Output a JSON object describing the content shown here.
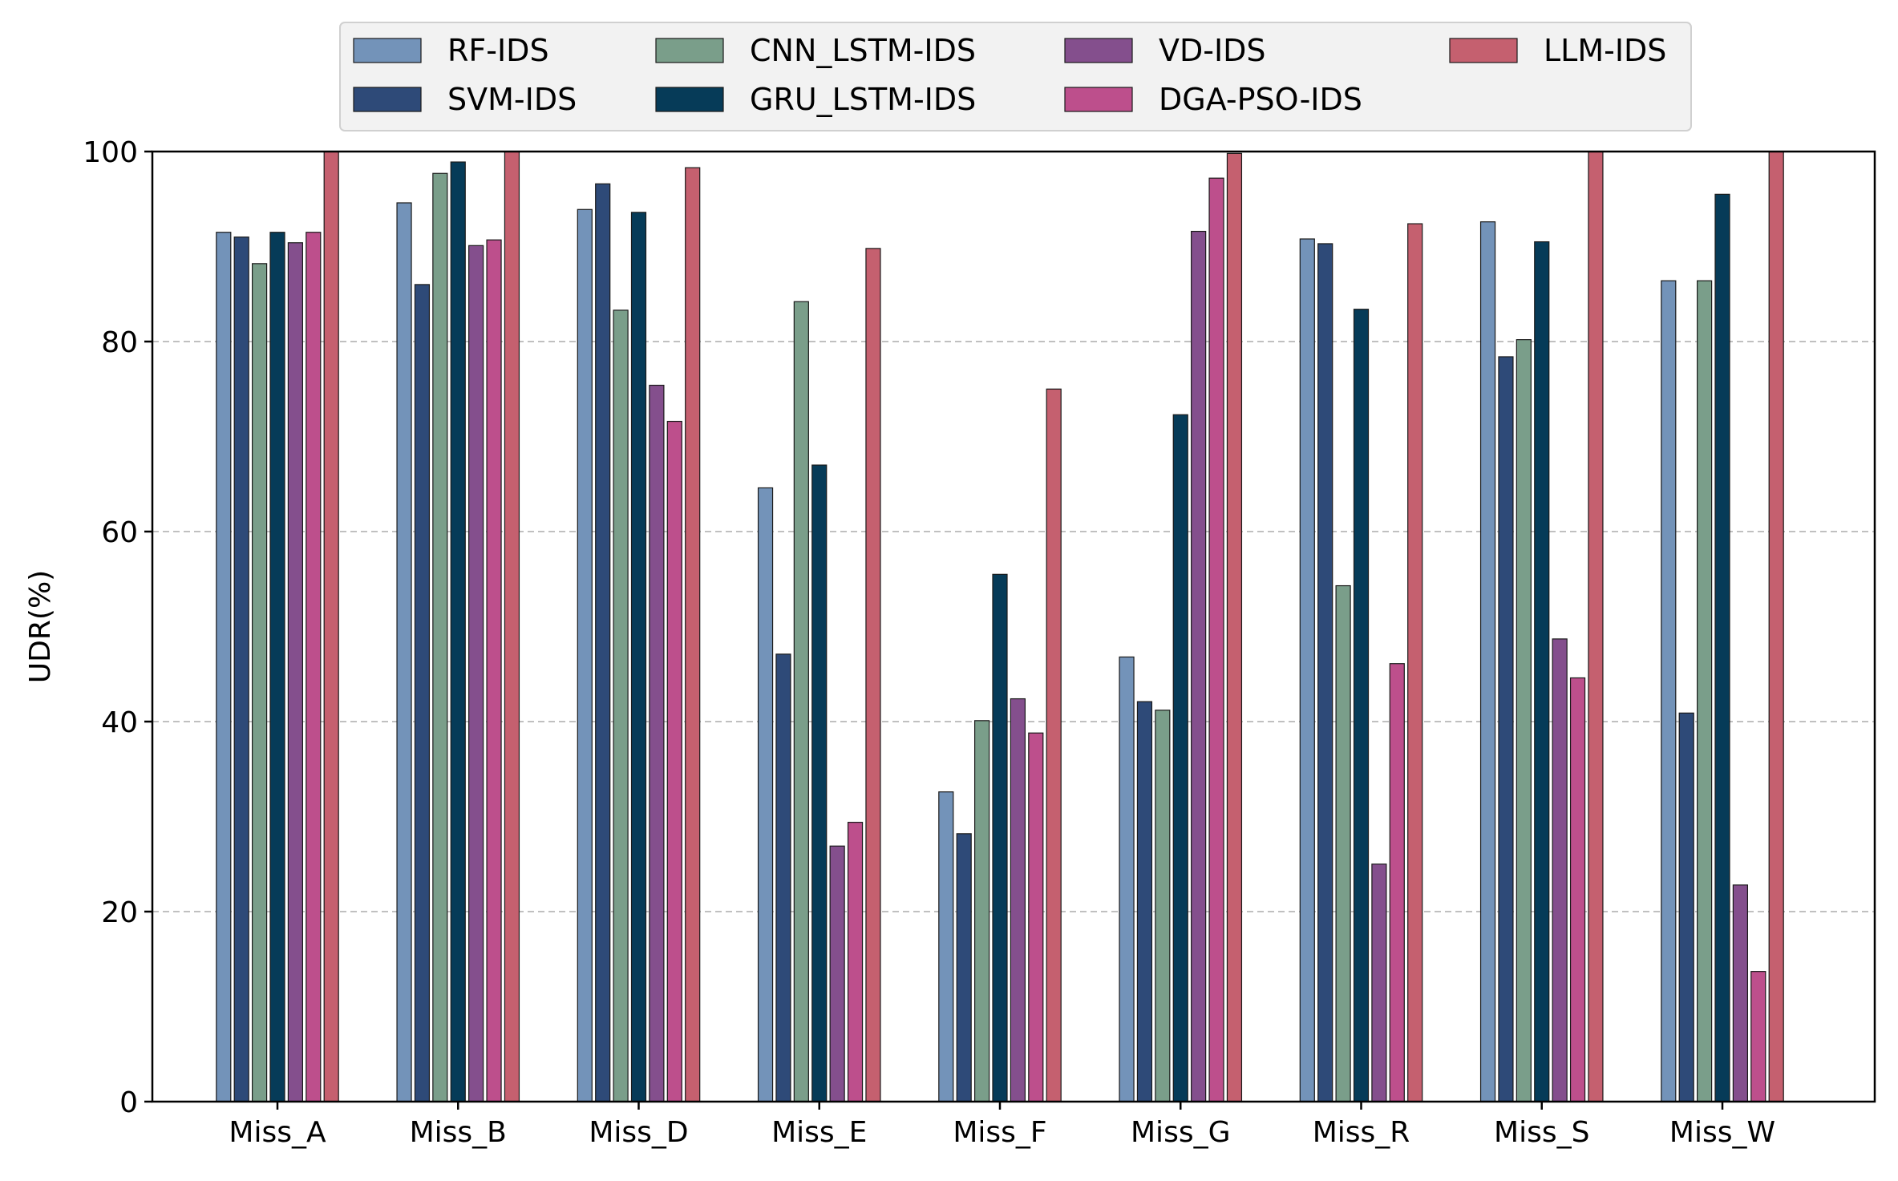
{
  "chart_data": {
    "type": "bar",
    "title": "",
    "xlabel": "",
    "ylabel": "UDR(%)",
    "ylim": [
      0,
      100
    ],
    "yticks": [
      0,
      20,
      40,
      60,
      80,
      100
    ],
    "grid": "y-dashed",
    "legend_position": "top-center",
    "categories": [
      "Miss_A",
      "Miss_B",
      "Miss_D",
      "Miss_E",
      "Miss_F",
      "Miss_G",
      "Miss_R",
      "Miss_S",
      "Miss_W"
    ],
    "series": [
      {
        "name": "RF-IDS",
        "color": "#7393b9",
        "values": [
          91.5,
          94.6,
          93.9,
          64.6,
          32.6,
          46.8,
          90.8,
          92.6,
          86.4
        ]
      },
      {
        "name": "SVM-IDS",
        "color": "#2e4a78",
        "values": [
          91.0,
          86.0,
          96.6,
          47.1,
          28.2,
          42.1,
          90.3,
          78.4,
          40.9
        ]
      },
      {
        "name": "CNN_LSTM-IDS",
        "color": "#7a9e8a",
        "values": [
          88.2,
          97.7,
          83.3,
          84.2,
          40.1,
          41.2,
          54.3,
          80.2,
          86.4
        ]
      },
      {
        "name": "GRU_LSTM-IDS",
        "color": "#063b58",
        "values": [
          91.5,
          98.9,
          93.6,
          67.0,
          55.5,
          72.3,
          83.4,
          90.5,
          95.5
        ]
      },
      {
        "name": "VD-IDS",
        "color": "#844f8d",
        "values": [
          90.4,
          90.1,
          75.4,
          26.9,
          42.4,
          91.6,
          25.0,
          48.7,
          22.8
        ]
      },
      {
        "name": "DGA-PSO-IDS",
        "color": "#bd4f8c",
        "values": [
          91.5,
          90.7,
          71.6,
          29.4,
          38.8,
          97.2,
          46.1,
          44.6,
          13.7
        ]
      },
      {
        "name": "LLM-IDS",
        "color": "#c5606f",
        "values": [
          100.0,
          100.0,
          98.3,
          89.8,
          75.0,
          99.8,
          92.4,
          100.0,
          100.0
        ]
      }
    ]
  }
}
